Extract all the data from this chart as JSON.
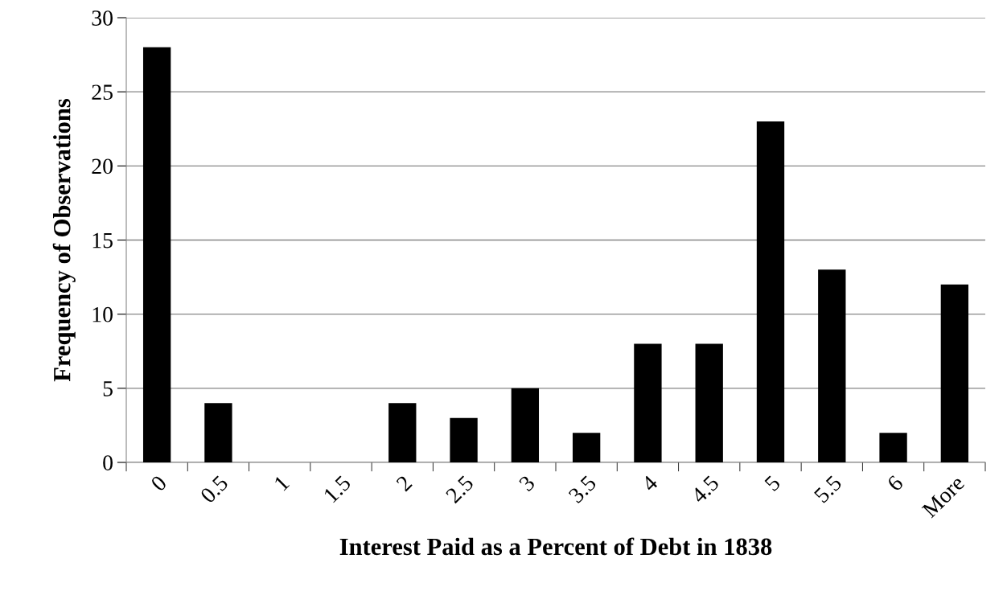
{
  "chart_data": {
    "type": "bar",
    "categories": [
      "0",
      "0.5",
      "1",
      "1.5",
      "2",
      "2.5",
      "3",
      "3.5",
      "4",
      "4.5",
      "5",
      "5.5",
      "6",
      "More"
    ],
    "values": [
      28,
      4,
      0,
      0,
      4,
      3,
      5,
      2,
      8,
      8,
      23,
      13,
      2,
      12
    ],
    "color": "#000000",
    "xlabel": "Interest Paid as a Percent of Debt in 1838",
    "ylabel": "Frequency of Observations",
    "ylim": [
      0,
      30
    ],
    "yticks": [
      0,
      5,
      10,
      15,
      20,
      25,
      30
    ],
    "grid": "y",
    "legend": false
  }
}
